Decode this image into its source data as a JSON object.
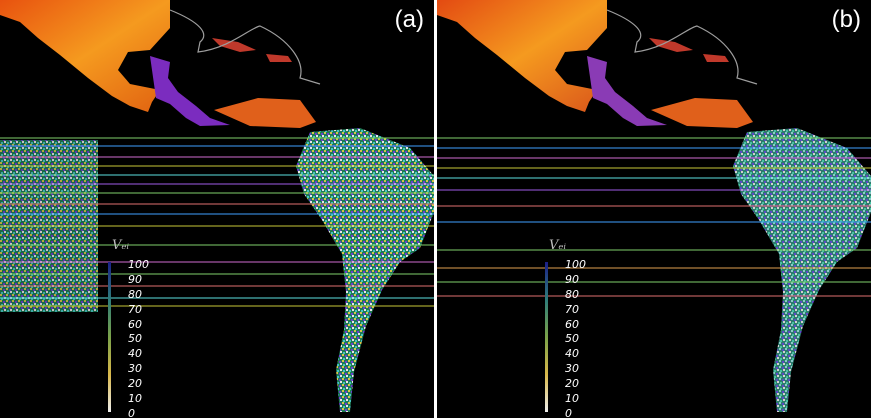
{
  "panels": [
    {
      "label": "(a)",
      "legend_title": "Vₑᵢ",
      "scale": [
        "100",
        "90",
        "80",
        "70",
        "60",
        "50",
        "40",
        "30",
        "20",
        "10",
        "0"
      ]
    },
    {
      "label": "(b)",
      "legend_title": "Vₑᵢ",
      "scale": [
        "100",
        "90",
        "80",
        "70",
        "60",
        "50",
        "40",
        "30",
        "20",
        "10",
        "0"
      ]
    }
  ],
  "colors": {
    "background": "#000000",
    "land_north": "#f07a1c",
    "land_hot": "#c0392b",
    "land_wet": "#7b2cbf",
    "land_south": "#2aa198",
    "coast": "#9e9e9e",
    "stripe": "#8fd16b"
  }
}
